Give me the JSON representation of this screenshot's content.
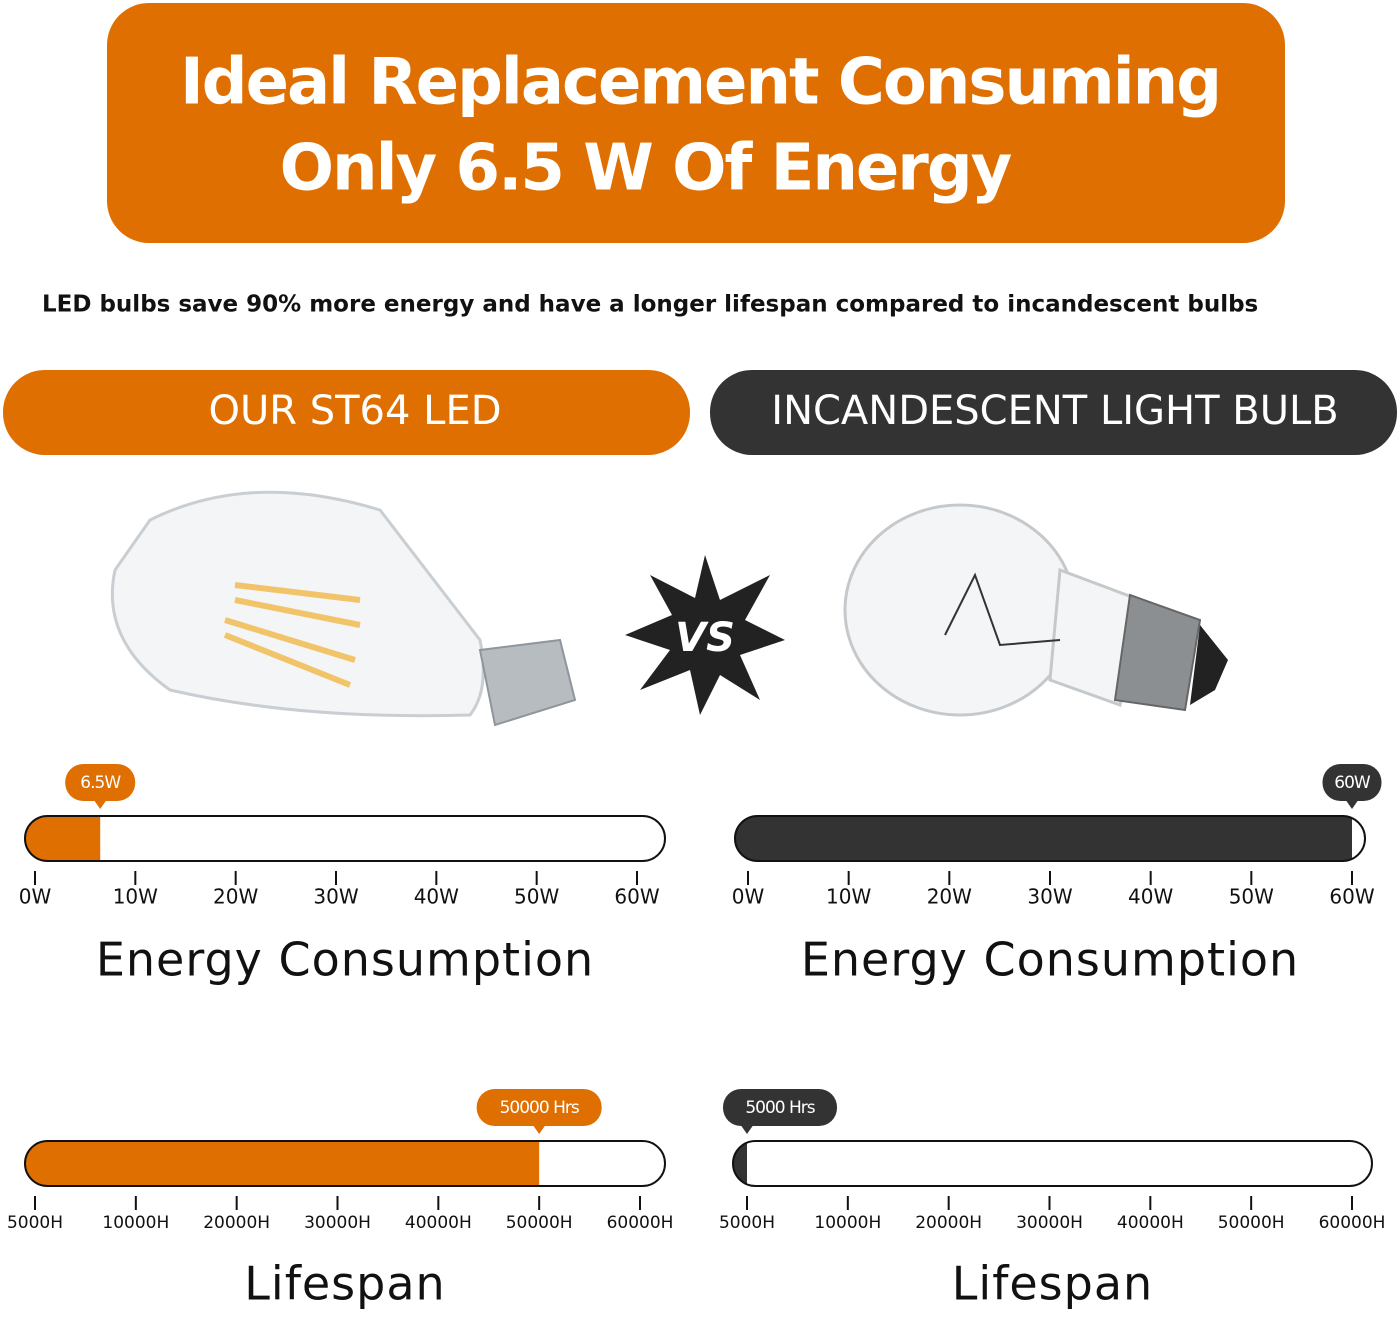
{
  "header": {
    "title_line1": "Ideal Replacement Consuming",
    "title_line2": "Only 6.5 W Of Energy",
    "subtitle": "LED bulbs save 90% more energy and have a longer lifespan compared to incandescent bulbs"
  },
  "products": [
    {
      "name": "OUR ST64 LED",
      "color": "#df6f00"
    },
    {
      "name": "INCANDESCENT LIGHT BULB",
      "color": "#333333"
    }
  ],
  "vs_label": "VS",
  "gauges": [
    {
      "title": "Energy Consumption",
      "value": 6.5,
      "value_label": "6.5W",
      "color": "#df6f00",
      "ticks": [
        {
          "value": 0,
          "label": "0W"
        },
        {
          "value": 10,
          "label": "10W"
        },
        {
          "value": 20,
          "label": "20W"
        },
        {
          "value": 30,
          "label": "30W"
        },
        {
          "value": 40,
          "label": "40W"
        },
        {
          "value": 50,
          "label": "50W"
        },
        {
          "value": 60,
          "label": "60W"
        }
      ]
    },
    {
      "title": "Energy Consumption",
      "value": 60,
      "value_label": "60W",
      "color": "#333333",
      "ticks": [
        {
          "value": 0,
          "label": "0W"
        },
        {
          "value": 10,
          "label": "10W"
        },
        {
          "value": 20,
          "label": "20W"
        },
        {
          "value": 30,
          "label": "30W"
        },
        {
          "value": 40,
          "label": "40W"
        },
        {
          "value": 50,
          "label": "50W"
        },
        {
          "value": 60,
          "label": "60W"
        }
      ]
    },
    {
      "title": "Lifespan",
      "value": 50000,
      "value_label": "50000 Hrs",
      "color": "#df6f00",
      "ticks": [
        {
          "value": 5000,
          "label": "5000H"
        },
        {
          "value": 10000,
          "label": "10000H"
        },
        {
          "value": 20000,
          "label": "20000H"
        },
        {
          "value": 30000,
          "label": "30000H"
        },
        {
          "value": 40000,
          "label": "40000H"
        },
        {
          "value": 50000,
          "label": "50000H"
        },
        {
          "value": 60000,
          "label": "60000H"
        }
      ]
    },
    {
      "title": "Lifespan",
      "value": 5000,
      "value_label": "5000 Hrs",
      "color": "#333333",
      "ticks": [
        {
          "value": 5000,
          "label": "5000H"
        },
        {
          "value": 10000,
          "label": "10000H"
        },
        {
          "value": 20000,
          "label": "20000H"
        },
        {
          "value": 30000,
          "label": "30000H"
        },
        {
          "value": 40000,
          "label": "40000H"
        },
        {
          "value": 50000,
          "label": "50000H"
        },
        {
          "value": 60000,
          "label": "60000H"
        }
      ]
    }
  ]
}
